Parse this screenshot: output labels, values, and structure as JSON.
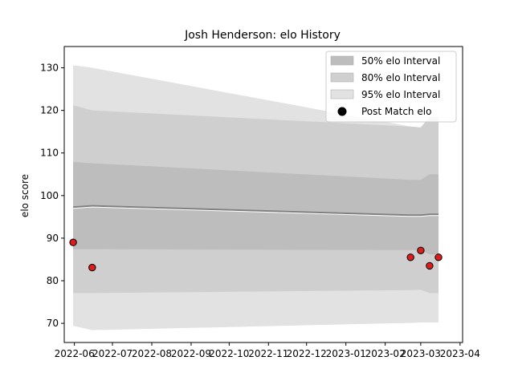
{
  "chart_data": {
    "type": "area",
    "title": "Josh Henderson: elo History",
    "xlabel": "",
    "ylabel": "elo score",
    "ylim": [
      65.5,
      135
    ],
    "xlim": [
      "2022-05-24",
      "2023-04-03"
    ],
    "grid": false,
    "legend_position": "top-right",
    "x_ticks": [
      "2022-06",
      "2022-07",
      "2022-08",
      "2022-09",
      "2022-10",
      "2022-11",
      "2022-12",
      "2023-01",
      "2023-02",
      "2023-03",
      "2023-04"
    ],
    "y_ticks": [
      70,
      80,
      90,
      100,
      110,
      120,
      130
    ],
    "band_dates": [
      "2022-05-31",
      "2022-06-15",
      "2023-02-21",
      "2023-03-01",
      "2023-03-08",
      "2023-03-15"
    ],
    "series": [
      {
        "name": "95% elo Interval",
        "color": "#e2e2e2",
        "upper": [
          130.6,
          130.0,
          116.2,
          116.0,
          118.5,
          118.5
        ],
        "lower": [
          69.4,
          68.4,
          70.1,
          70.2,
          70.2,
          70.2
        ]
      },
      {
        "name": "80% elo Interval",
        "color": "#cfcfcf",
        "upper": [
          121.2,
          120.0,
          116.2,
          116.0,
          118.5,
          118.5
        ],
        "lower": [
          77.1,
          77.1,
          77.8,
          77.9,
          77.1,
          77.1
        ]
      },
      {
        "name": "50% elo Interval",
        "color": "#bdbdbd",
        "upper": [
          107.9,
          107.6,
          103.7,
          103.7,
          105.0,
          105.0
        ],
        "lower": [
          87.4,
          87.4,
          87.2,
          87.2,
          86.2,
          86.2
        ]
      }
    ],
    "mean_line": {
      "dates": [
        "2022-05-31",
        "2022-06-15",
        "2023-02-21",
        "2023-03-01",
        "2023-03-08",
        "2023-03-15"
      ],
      "values": [
        97.3,
        97.6,
        95.4,
        95.4,
        95.6,
        95.6
      ],
      "color": "#808080"
    },
    "post_match": {
      "name": "Post Match elo",
      "color": "#dd1c1c",
      "points": [
        {
          "date": "2022-05-31",
          "value": 89.0
        },
        {
          "date": "2022-06-15",
          "value": 83.1
        },
        {
          "date": "2023-02-21",
          "value": 85.5
        },
        {
          "date": "2023-03-01",
          "value": 87.1
        },
        {
          "date": "2023-03-08",
          "value": 83.5
        },
        {
          "date": "2023-03-15",
          "value": 85.5
        }
      ]
    }
  }
}
